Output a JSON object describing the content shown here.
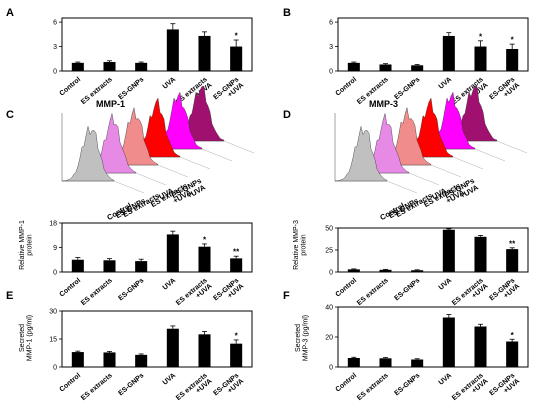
{
  "panel_labels": [
    "A",
    "B",
    "C",
    "D",
    "E",
    "F"
  ],
  "flow_histograms": [
    {
      "title": "MMP-1",
      "labels": [
        "Control",
        "ES-GNPs",
        "ES extracts",
        "UVA",
        "ES extracts\n+UVA",
        "ES-GNPs\n+UVA"
      ],
      "colors": [
        "#c0c0c0",
        "#e68ae6",
        "#f08c8c",
        "#ff0000",
        "#ff00ff",
        "#a0106e"
      ]
    },
    {
      "title": "MMP-3",
      "labels": [
        "Control",
        "ES-GNPs",
        "ES extracts",
        "UVA",
        "ES extracts\n+UVA",
        "ES-GNPs\n+UVA"
      ],
      "colors": [
        "#c0c0c0",
        "#e68ae6",
        "#f08c8c",
        "#ff0000",
        "#ff00ff",
        "#a0106e"
      ]
    }
  ],
  "chart_data": [
    {
      "panel": "A",
      "type": "bar",
      "categories": [
        "Control",
        "ES extracts",
        "ES-GNPs",
        "UVA",
        "ES extracts\n+UVA",
        "ES-GNPs\n+UVA\n*"
      ],
      "values": [
        1.0,
        1.1,
        1.0,
        5.1,
        4.3,
        3.0
      ],
      "errors": [
        0.1,
        0.15,
        0.1,
        0.7,
        0.5,
        0.8
      ],
      "significance": [
        "",
        "",
        "",
        "",
        "",
        "*"
      ],
      "yticks": [
        "0",
        "3",
        "6"
      ],
      "ylim": [
        0,
        6.5
      ],
      "ylabel": ""
    },
    {
      "panel": "B",
      "type": "bar",
      "categories": [
        "Control",
        "ES extracts",
        "ES-GNPs",
        "UVA",
        "ES extracts\n+UVA",
        "ES-GNPs\n+UVA"
      ],
      "values": [
        1.0,
        0.8,
        0.7,
        4.3,
        3.0,
        2.7
      ],
      "errors": [
        0.1,
        0.1,
        0.1,
        0.4,
        0.7,
        0.6
      ],
      "significance": [
        "",
        "",
        "",
        "",
        "*",
        "*"
      ],
      "yticks": [
        "0",
        "3",
        "6"
      ],
      "ylim": [
        0,
        6.5
      ],
      "ylabel": ""
    },
    {
      "panel": "C",
      "type": "bar",
      "categories": [
        "Control",
        "ES extracts",
        "ES-GNPs",
        "UVA",
        "ES extracts\n+UVA",
        "ES-GNPs\n+UVA"
      ],
      "values": [
        4.5,
        4.3,
        4.0,
        13.8,
        9.3,
        5.0
      ],
      "errors": [
        0.8,
        0.6,
        0.7,
        1.2,
        1.0,
        0.8
      ],
      "significance": [
        "",
        "",
        "",
        "",
        "*",
        "**"
      ],
      "yticks": [
        "0",
        "9",
        "18"
      ],
      "ylim": [
        0,
        18
      ],
      "ylabel": "Relative MMP-1\nprotein"
    },
    {
      "panel": "D",
      "type": "bar",
      "categories": [
        "Control",
        "ES extracts",
        "ES-GNPs",
        "UVA",
        "ES extracts\n+UVA",
        "ES-GNPs\n+UVA"
      ],
      "values": [
        3,
        2.5,
        2,
        48,
        40,
        26
      ],
      "errors": [
        0.5,
        0.5,
        0.5,
        1.0,
        1.5,
        1.5
      ],
      "significance": [
        "",
        "",
        "",
        "",
        "",
        "**"
      ],
      "yticks": [
        "0",
        "25",
        "50"
      ],
      "ylim": [
        0,
        50
      ],
      "ylabel": "Relative MMP-3\nprotein"
    },
    {
      "panel": "E",
      "type": "bar",
      "categories": [
        "Control",
        "ES extracts",
        "ES-GNPs",
        "UVA",
        "ES extracts\n+UVA",
        "ES-GNPs\n+UVA"
      ],
      "values": [
        8,
        7.8,
        6.5,
        20.5,
        17.5,
        12.5
      ],
      "errors": [
        0.5,
        0.5,
        0.5,
        1.5,
        1.5,
        2.0
      ],
      "significance": [
        "",
        "",
        "",
        "",
        "",
        "*"
      ],
      "yticks": [
        "0",
        "15",
        "30"
      ],
      "ylim": [
        0,
        30
      ],
      "ylabel": "Secreted\nMMP-1 (pg/ml)"
    },
    {
      "panel": "F",
      "type": "bar",
      "categories": [
        "Control",
        "ES extracts",
        "ES-GNPs",
        "UVA",
        "ES extracts\n+UVA",
        "ES-GNPs\n+UVA"
      ],
      "values": [
        6,
        5.8,
        5,
        33,
        27,
        17
      ],
      "errors": [
        0.5,
        0.5,
        0.5,
        2.0,
        1.5,
        1.5
      ],
      "significance": [
        "",
        "",
        "",
        "",
        "",
        "*"
      ],
      "yticks": [
        "0",
        "20",
        "40"
      ],
      "ylim": [
        0,
        40
      ],
      "ylabel": "Secreted\nMMP-3 (pg/ml)"
    }
  ]
}
